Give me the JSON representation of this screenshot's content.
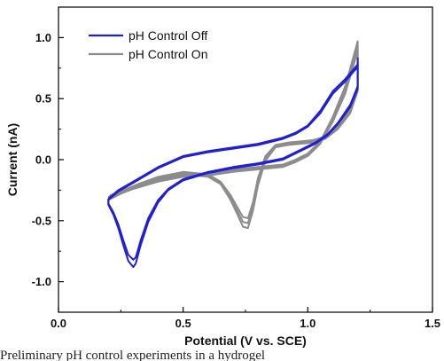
{
  "chart_data": {
    "type": "line",
    "title": "",
    "xlabel": "Potential (V vs. SCE)",
    "ylabel": "Current (nA)",
    "xlim": [
      0.0,
      1.5
    ],
    "ylim": [
      -1.25,
      1.25
    ],
    "xticks": [
      0.0,
      0.5,
      1.0,
      1.5
    ],
    "xtick_labels": [
      "0.0",
      "0.5",
      "1.0",
      "1.5"
    ],
    "yticks": [
      -1.0,
      -0.5,
      0.0,
      0.5,
      1.0
    ],
    "ytick_labels": [
      "-1.0",
      "-0.5",
      "0.0",
      "0.5",
      "1.0"
    ],
    "grid": false,
    "legend_position": "top-left",
    "series": [
      {
        "name": "pH Control Off",
        "color": "#1f1fd6",
        "cycles": [
          [
            [
              0.2,
              -0.32
            ],
            [
              0.24,
              -0.25
            ],
            [
              0.3,
              -0.18
            ],
            [
              0.4,
              -0.06
            ],
            [
              0.5,
              0.03
            ],
            [
              0.6,
              0.07
            ],
            [
              0.7,
              0.1
            ],
            [
              0.8,
              0.13
            ],
            [
              0.9,
              0.18
            ],
            [
              0.95,
              0.22
            ],
            [
              1.0,
              0.28
            ],
            [
              1.05,
              0.4
            ],
            [
              1.1,
              0.56
            ],
            [
              1.15,
              0.66
            ],
            [
              1.2,
              0.78
            ],
            [
              1.2,
              0.83
            ],
            [
              1.2,
              0.6
            ],
            [
              1.17,
              0.45
            ],
            [
              1.12,
              0.3
            ],
            [
              1.08,
              0.21
            ],
            [
              1.03,
              0.14
            ],
            [
              0.97,
              0.08
            ],
            [
              0.9,
              0.01
            ],
            [
              0.8,
              -0.03
            ],
            [
              0.7,
              -0.06
            ],
            [
              0.6,
              -0.1
            ],
            [
              0.5,
              -0.16
            ],
            [
              0.44,
              -0.24
            ],
            [
              0.4,
              -0.33
            ],
            [
              0.36,
              -0.48
            ],
            [
              0.33,
              -0.66
            ],
            [
              0.31,
              -0.8
            ],
            [
              0.3,
              -0.82
            ],
            [
              0.28,
              -0.78
            ],
            [
              0.26,
              -0.66
            ],
            [
              0.24,
              -0.53
            ],
            [
              0.22,
              -0.43
            ],
            [
              0.2,
              -0.36
            ],
            [
              0.2,
              -0.32
            ]
          ],
          [
            [
              0.2,
              -0.33
            ],
            [
              0.24,
              -0.26
            ],
            [
              0.3,
              -0.19
            ],
            [
              0.4,
              -0.07
            ],
            [
              0.5,
              0.02
            ],
            [
              0.6,
              0.06
            ],
            [
              0.7,
              0.09
            ],
            [
              0.8,
              0.12
            ],
            [
              0.9,
              0.17
            ],
            [
              0.95,
              0.21
            ],
            [
              1.0,
              0.27
            ],
            [
              1.05,
              0.38
            ],
            [
              1.1,
              0.54
            ],
            [
              1.15,
              0.64
            ],
            [
              1.2,
              0.76
            ],
            [
              1.2,
              0.8
            ],
            [
              1.2,
              0.58
            ],
            [
              1.17,
              0.43
            ],
            [
              1.12,
              0.29
            ],
            [
              1.08,
              0.2
            ],
            [
              1.03,
              0.13
            ],
            [
              0.97,
              0.07
            ],
            [
              0.9,
              0.0
            ],
            [
              0.8,
              -0.04
            ],
            [
              0.7,
              -0.07
            ],
            [
              0.6,
              -0.11
            ],
            [
              0.5,
              -0.17
            ],
            [
              0.44,
              -0.25
            ],
            [
              0.4,
              -0.35
            ],
            [
              0.36,
              -0.51
            ],
            [
              0.33,
              -0.7
            ],
            [
              0.31,
              -0.85
            ],
            [
              0.3,
              -0.88
            ],
            [
              0.28,
              -0.83
            ],
            [
              0.26,
              -0.7
            ],
            [
              0.24,
              -0.56
            ],
            [
              0.22,
              -0.45
            ],
            [
              0.2,
              -0.37
            ],
            [
              0.2,
              -0.33
            ]
          ]
        ]
      },
      {
        "name": "pH Control On",
        "color": "#8c8c8c",
        "cycles": [
          [
            [
              0.2,
              -0.31
            ],
            [
              0.25,
              -0.26
            ],
            [
              0.3,
              -0.22
            ],
            [
              0.4,
              -0.16
            ],
            [
              0.5,
              -0.12
            ],
            [
              0.6,
              -0.11
            ],
            [
              0.7,
              -0.08
            ],
            [
              0.8,
              -0.06
            ],
            [
              0.9,
              -0.04
            ],
            [
              0.95,
              0.0
            ],
            [
              1.0,
              0.05
            ],
            [
              1.05,
              0.15
            ],
            [
              1.1,
              0.35
            ],
            [
              1.15,
              0.6
            ],
            [
              1.2,
              0.97
            ],
            [
              1.2,
              0.6
            ],
            [
              1.17,
              0.42
            ],
            [
              1.12,
              0.27
            ],
            [
              1.07,
              0.19
            ],
            [
              1.02,
              0.16
            ],
            [
              0.97,
              0.15
            ],
            [
              0.92,
              0.14
            ],
            [
              0.87,
              0.12
            ],
            [
              0.83,
              0.03
            ],
            [
              0.8,
              -0.15
            ],
            [
              0.78,
              -0.35
            ],
            [
              0.76,
              -0.48
            ],
            [
              0.74,
              -0.47
            ],
            [
              0.72,
              -0.4
            ],
            [
              0.69,
              -0.29
            ],
            [
              0.65,
              -0.18
            ],
            [
              0.6,
              -0.12
            ],
            [
              0.5,
              -0.1
            ],
            [
              0.4,
              -0.14
            ],
            [
              0.32,
              -0.2
            ],
            [
              0.26,
              -0.25
            ],
            [
              0.21,
              -0.29
            ],
            [
              0.2,
              -0.31
            ]
          ],
          [
            [
              0.2,
              -0.32
            ],
            [
              0.25,
              -0.27
            ],
            [
              0.3,
              -0.23
            ],
            [
              0.4,
              -0.17
            ],
            [
              0.5,
              -0.13
            ],
            [
              0.6,
              -0.12
            ],
            [
              0.7,
              -0.09
            ],
            [
              0.8,
              -0.07
            ],
            [
              0.9,
              -0.05
            ],
            [
              0.95,
              -0.01
            ],
            [
              1.0,
              0.04
            ],
            [
              1.05,
              0.14
            ],
            [
              1.1,
              0.33
            ],
            [
              1.15,
              0.57
            ],
            [
              1.2,
              0.93
            ],
            [
              1.2,
              0.58
            ],
            [
              1.17,
              0.4
            ],
            [
              1.12,
              0.26
            ],
            [
              1.07,
              0.18
            ],
            [
              1.02,
              0.15
            ],
            [
              0.97,
              0.14
            ],
            [
              0.92,
              0.13
            ],
            [
              0.87,
              0.11
            ],
            [
              0.83,
              0.01
            ],
            [
              0.8,
              -0.18
            ],
            [
              0.78,
              -0.38
            ],
            [
              0.76,
              -0.52
            ],
            [
              0.74,
              -0.51
            ],
            [
              0.72,
              -0.43
            ],
            [
              0.69,
              -0.31
            ],
            [
              0.65,
              -0.19
            ],
            [
              0.6,
              -0.13
            ],
            [
              0.5,
              -0.11
            ],
            [
              0.4,
              -0.15
            ],
            [
              0.32,
              -0.21
            ],
            [
              0.26,
              -0.26
            ],
            [
              0.21,
              -0.3
            ],
            [
              0.2,
              -0.32
            ]
          ],
          [
            [
              0.2,
              -0.33
            ],
            [
              0.25,
              -0.28
            ],
            [
              0.3,
              -0.24
            ],
            [
              0.4,
              -0.18
            ],
            [
              0.5,
              -0.14
            ],
            [
              0.6,
              -0.13
            ],
            [
              0.7,
              -0.1
            ],
            [
              0.8,
              -0.08
            ],
            [
              0.9,
              -0.06
            ],
            [
              0.95,
              -0.02
            ],
            [
              1.0,
              0.03
            ],
            [
              1.05,
              0.13
            ],
            [
              1.1,
              0.31
            ],
            [
              1.15,
              0.54
            ],
            [
              1.2,
              0.89
            ],
            [
              1.2,
              0.56
            ],
            [
              1.17,
              0.38
            ],
            [
              1.12,
              0.25
            ],
            [
              1.07,
              0.17
            ],
            [
              1.02,
              0.14
            ],
            [
              0.97,
              0.13
            ],
            [
              0.92,
              0.12
            ],
            [
              0.87,
              0.1
            ],
            [
              0.83,
              -0.01
            ],
            [
              0.8,
              -0.21
            ],
            [
              0.78,
              -0.42
            ],
            [
              0.76,
              -0.56
            ],
            [
              0.74,
              -0.55
            ],
            [
              0.72,
              -0.46
            ],
            [
              0.69,
              -0.33
            ],
            [
              0.65,
              -0.2
            ],
            [
              0.6,
              -0.14
            ],
            [
              0.5,
              -0.12
            ],
            [
              0.4,
              -0.16
            ],
            [
              0.32,
              -0.22
            ],
            [
              0.26,
              -0.27
            ],
            [
              0.21,
              -0.31
            ],
            [
              0.2,
              -0.33
            ]
          ]
        ]
      }
    ]
  },
  "caption": "Preliminary pH control experiments in a hydrogel"
}
